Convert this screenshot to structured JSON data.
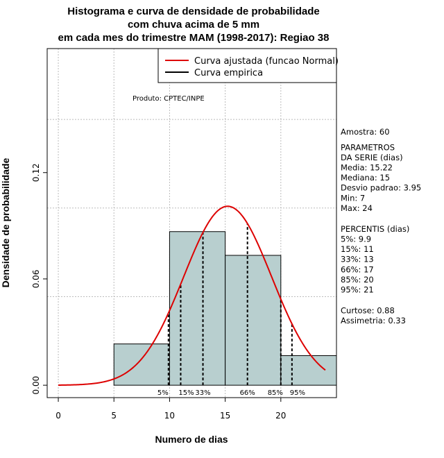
{
  "chart_data": {
    "type": "histogram",
    "title_lines": [
      "Histograma e curva de densidade de probabilidade",
      "com chuva acima de 5 mm",
      "em cada mes do trimestre MAM (1998-2017): Regiao 38"
    ],
    "xlabel": "Numero de dias",
    "ylabel": "Densidade de probabilidade",
    "xlim": [
      -1,
      25
    ],
    "ylim": [
      -0.007,
      0.19
    ],
    "x_ticks": [
      0,
      5,
      10,
      15,
      20
    ],
    "y_ticks": [
      0.0,
      0.06,
      0.12
    ],
    "y_tick_labels": [
      "0.00",
      "0.06",
      "0.12"
    ],
    "grid_y": [
      0.05,
      0.1,
      0.15
    ],
    "bins": [
      {
        "start": 5,
        "end": 10,
        "density": 0.0233
      },
      {
        "start": 10,
        "end": 15,
        "density": 0.0867
      },
      {
        "start": 15,
        "end": 20,
        "density": 0.0733
      },
      {
        "start": 20,
        "end": 25,
        "density": 0.0167
      }
    ],
    "bar_color": "#b8cfcf",
    "curve_color": "#dd0000",
    "curve": {
      "mean": 15.22,
      "sd": 3.95,
      "from": 0,
      "to": 24
    },
    "percentile_lines": [
      {
        "label": "5%",
        "x": 9.9
      },
      {
        "label": "15%",
        "x": 11
      },
      {
        "label": "33%",
        "x": 13
      },
      {
        "label": "66%",
        "x": 17
      },
      {
        "label": "85%",
        "x": 20
      },
      {
        "label": "95%",
        "x": 21
      }
    ],
    "legend": [
      {
        "label": "Curva ajustada (funcao Normal)",
        "color": "#dd0000"
      },
      {
        "label": "Curva empirica",
        "color": "#000000"
      }
    ],
    "product_note": "Produto: CPTEC/INPE",
    "side_text": [
      "Amostra: 60",
      "",
      " PARAMETROS",
      "DA SERIE (dias)",
      "  Media: 15.22",
      "  Mediana: 15",
      "  Desvio padrao: 3.95",
      "  Min: 7",
      "  Max: 24",
      "",
      "",
      "PERCENTIS (dias)",
      "  5%: 9.9",
      "  15%: 11",
      "  33%: 13",
      "  66%: 17",
      "  85%: 20",
      "  95%: 21",
      "",
      "",
      "   Curtose: 0.88",
      "Assimetria: 0.33"
    ]
  }
}
